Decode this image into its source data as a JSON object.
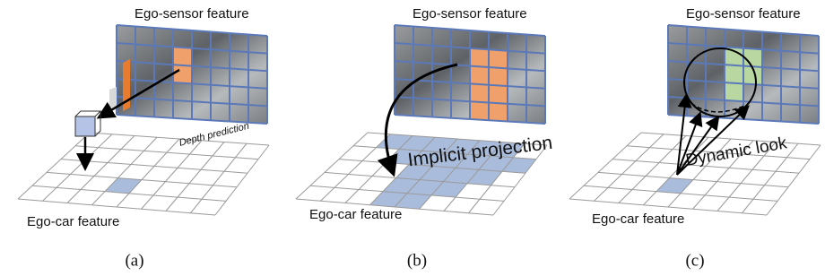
{
  "panels": [
    {
      "sensor_label": "Ego-sensor feature",
      "car_label": "Ego-car feature",
      "annotation": "Depth prediction",
      "caption": "(a)"
    },
    {
      "sensor_label": "Ego-sensor feature",
      "car_label": "Ego-car feature",
      "annotation": "Implicit projection",
      "caption": "(b)"
    },
    {
      "sensor_label": "Ego-sensor feature",
      "car_label": "Ego-car feature",
      "annotation": "Dynamic look",
      "caption": "(c)"
    }
  ]
}
